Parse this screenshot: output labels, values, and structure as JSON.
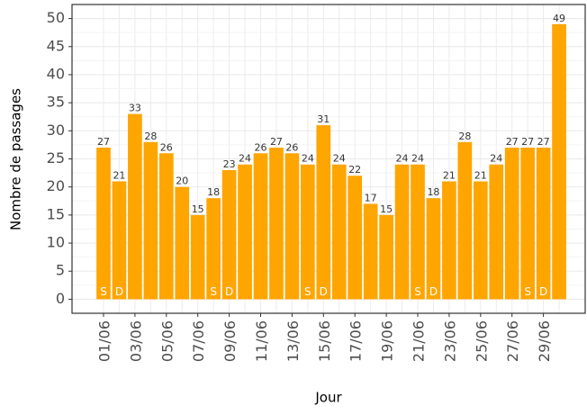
{
  "chart_data": {
    "type": "bar",
    "x_label": "Jour",
    "y_label": "Nombre de passages",
    "categories": [
      "01/06",
      null,
      "03/06",
      null,
      "05/06",
      null,
      "07/06",
      null,
      "09/06",
      null,
      "11/06",
      null,
      "13/06",
      null,
      "15/06",
      null,
      "17/06",
      null,
      "19/06",
      null,
      "21/06",
      null,
      "23/06",
      null,
      "25/06",
      null,
      "27/06",
      null,
      "29/06",
      null
    ],
    "values": [
      27,
      21,
      33,
      28,
      26,
      20,
      15,
      18,
      23,
      24,
      26,
      27,
      26,
      24,
      31,
      24,
      22,
      17,
      15,
      24,
      24,
      18,
      21,
      28,
      21,
      24,
      27,
      27,
      27,
      49
    ],
    "day_marks": [
      "S",
      "D",
      null,
      null,
      null,
      null,
      null,
      "S",
      "D",
      null,
      null,
      null,
      null,
      "S",
      "D",
      null,
      null,
      null,
      null,
      null,
      "S",
      "D",
      null,
      null,
      null,
      null,
      null,
      "S",
      "D",
      null
    ],
    "color": "#ffa500",
    "ylim": [
      -2.5,
      52.5
    ],
    "yticks": [
      0,
      5,
      10,
      15,
      20,
      25,
      30,
      35,
      40,
      45,
      50
    ],
    "grid": true
  }
}
